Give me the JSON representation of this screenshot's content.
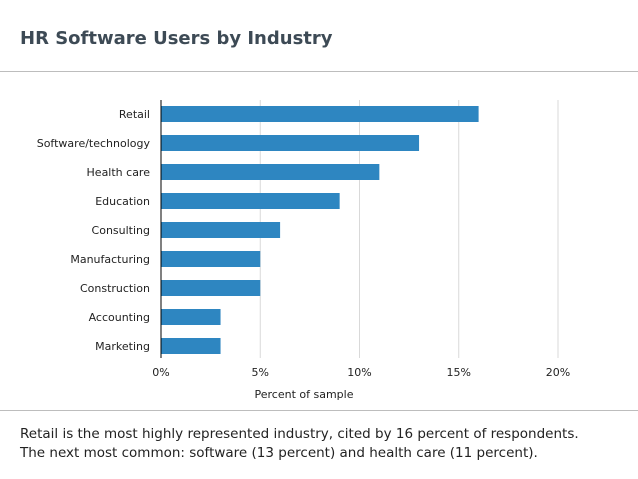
{
  "header": {
    "title": "HR Software Users by Industry"
  },
  "chart_data": {
    "type": "bar",
    "orientation": "horizontal",
    "title": "",
    "categories": [
      "Retail",
      "Software/technology",
      "Health care",
      "Education",
      "Consulting",
      "Manufacturing",
      "Construction",
      "Accounting",
      "Marketing"
    ],
    "values": [
      16,
      13,
      11,
      9,
      6,
      5,
      5,
      3,
      3
    ],
    "xlabel": "Percent of sample",
    "ylabel": "",
    "xlim": [
      0,
      20
    ],
    "xticks": [
      0,
      5,
      10,
      15,
      20
    ],
    "tick_labels": [
      "0%",
      "5%",
      "10%",
      "15%",
      "20%"
    ],
    "grid": "vertical",
    "bar_color": "#2e86c1"
  },
  "footer": {
    "caption_line1": "Retail is the most highly represented industry, cited by 16 percent of respondents.",
    "caption_line2": "The next most common: software (13 percent) and health care (11 percent)."
  }
}
